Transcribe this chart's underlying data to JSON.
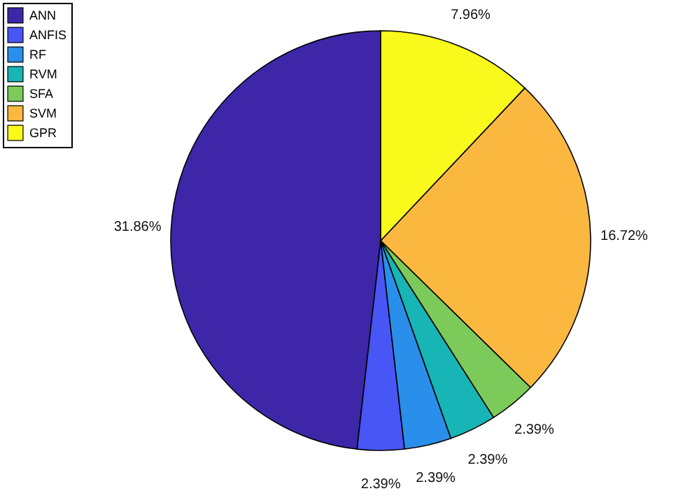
{
  "chart_data": {
    "type": "pie",
    "categories": [
      "ANN",
      "ANFIS",
      "RF",
      "RVM",
      "SFA",
      "SVM",
      "GPR"
    ],
    "values": [
      31.86,
      2.39,
      2.39,
      2.39,
      2.39,
      16.72,
      7.96
    ],
    "colors": [
      "#3e26a8",
      "#4856f5",
      "#2a8fea",
      "#17b5b5",
      "#7ccb5a",
      "#fbb840",
      "#f9f91c"
    ],
    "value_labels": [
      "31.86%",
      "2.39%",
      "2.39%",
      "2.39%",
      "2.39%",
      "16.72%",
      "7.96%"
    ],
    "legend": "top left"
  }
}
